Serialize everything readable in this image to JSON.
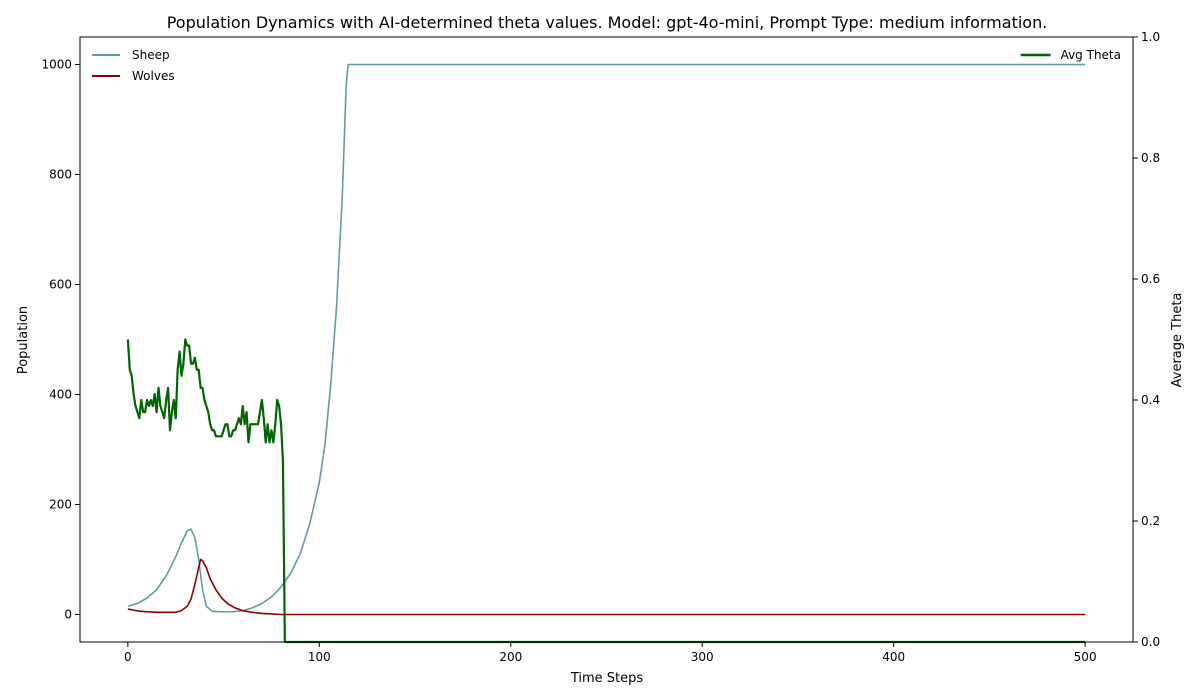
{
  "chart_data": {
    "type": "line",
    "title": "Population Dynamics with AI-determined theta values. Model: gpt-4o-mini, Prompt Type: medium information.",
    "xlabel": "Time Steps",
    "ylabel": "Population",
    "y2label": "Average Theta",
    "xlim": [
      -25,
      525
    ],
    "ylim": [
      -50,
      1050
    ],
    "y2lim": [
      0,
      1.0
    ],
    "xticks": [
      0,
      100,
      200,
      300,
      400,
      500
    ],
    "yticks": [
      0,
      200,
      400,
      600,
      800,
      1000
    ],
    "y2ticks": [
      0.0,
      0.2,
      0.4,
      0.6,
      0.8,
      1.0
    ],
    "legend_left_placement": "upper-left",
    "legend_right_placement": "upper-right",
    "series": [
      {
        "name": "Sheep",
        "axis": "left",
        "color": "#5f9ea0",
        "points": [
          [
            0,
            15
          ],
          [
            5,
            20
          ],
          [
            10,
            30
          ],
          [
            15,
            45
          ],
          [
            20,
            70
          ],
          [
            25,
            105
          ],
          [
            28,
            130
          ],
          [
            31,
            152
          ],
          [
            33,
            155
          ],
          [
            35,
            140
          ],
          [
            37,
            100
          ],
          [
            39,
            45
          ],
          [
            41,
            15
          ],
          [
            44,
            6
          ],
          [
            48,
            5
          ],
          [
            55,
            5
          ],
          [
            60,
            7
          ],
          [
            65,
            12
          ],
          [
            70,
            20
          ],
          [
            75,
            32
          ],
          [
            80,
            50
          ],
          [
            85,
            75
          ],
          [
            90,
            110
          ],
          [
            95,
            165
          ],
          [
            100,
            240
          ],
          [
            103,
            310
          ],
          [
            106,
            420
          ],
          [
            109,
            560
          ],
          [
            112,
            760
          ],
          [
            114,
            960
          ],
          [
            115,
            1000
          ],
          [
            500,
            1000
          ]
        ]
      },
      {
        "name": "Wolves",
        "axis": "left",
        "color": "#8b0000",
        "points": [
          [
            0,
            10
          ],
          [
            3,
            8
          ],
          [
            6,
            6
          ],
          [
            10,
            5
          ],
          [
            15,
            4
          ],
          [
            20,
            4
          ],
          [
            25,
            4
          ],
          [
            28,
            7
          ],
          [
            31,
            15
          ],
          [
            33,
            28
          ],
          [
            35,
            55
          ],
          [
            37,
            85
          ],
          [
            38,
            100
          ],
          [
            39,
            98
          ],
          [
            41,
            85
          ],
          [
            43,
            65
          ],
          [
            46,
            45
          ],
          [
            49,
            30
          ],
          [
            52,
            20
          ],
          [
            56,
            12
          ],
          [
            60,
            7
          ],
          [
            65,
            4
          ],
          [
            70,
            2
          ],
          [
            75,
            1
          ],
          [
            80,
            0
          ],
          [
            500,
            0
          ]
        ]
      },
      {
        "name": "Avg Theta",
        "axis": "right",
        "color": "#006400",
        "points": [
          [
            0,
            0.5
          ],
          [
            1,
            0.45
          ],
          [
            2,
            0.44
          ],
          [
            3,
            0.41
          ],
          [
            4,
            0.39
          ],
          [
            5,
            0.38
          ],
          [
            6,
            0.37
          ],
          [
            7,
            0.4
          ],
          [
            8,
            0.38
          ],
          [
            9,
            0.38
          ],
          [
            10,
            0.4
          ],
          [
            11,
            0.39
          ],
          [
            12,
            0.4
          ],
          [
            13,
            0.39
          ],
          [
            14,
            0.41
          ],
          [
            15,
            0.38
          ],
          [
            16,
            0.42
          ],
          [
            17,
            0.39
          ],
          [
            18,
            0.38
          ],
          [
            19,
            0.37
          ],
          [
            20,
            0.4
          ],
          [
            21,
            0.42
          ],
          [
            22,
            0.35
          ],
          [
            23,
            0.38
          ],
          [
            24,
            0.4
          ],
          [
            25,
            0.37
          ],
          [
            26,
            0.45
          ],
          [
            27,
            0.48
          ],
          [
            28,
            0.44
          ],
          [
            29,
            0.46
          ],
          [
            30,
            0.5
          ],
          [
            31,
            0.49
          ],
          [
            32,
            0.49
          ],
          [
            33,
            0.46
          ],
          [
            34,
            0.46
          ],
          [
            35,
            0.47
          ],
          [
            36,
            0.45
          ],
          [
            37,
            0.45
          ],
          [
            38,
            0.42
          ],
          [
            39,
            0.42
          ],
          [
            40,
            0.4
          ],
          [
            41,
            0.39
          ],
          [
            42,
            0.38
          ],
          [
            43,
            0.36
          ],
          [
            44,
            0.35
          ],
          [
            45,
            0.35
          ],
          [
            46,
            0.34
          ],
          [
            47,
            0.34
          ],
          [
            48,
            0.34
          ],
          [
            49,
            0.34
          ],
          [
            50,
            0.35
          ],
          [
            51,
            0.36
          ],
          [
            52,
            0.36
          ],
          [
            53,
            0.34
          ],
          [
            54,
            0.34
          ],
          [
            55,
            0.35
          ],
          [
            56,
            0.35
          ],
          [
            57,
            0.36
          ],
          [
            58,
            0.37
          ],
          [
            59,
            0.36
          ],
          [
            60,
            0.39
          ],
          [
            61,
            0.36
          ],
          [
            62,
            0.38
          ],
          [
            63,
            0.33
          ],
          [
            64,
            0.36
          ],
          [
            65,
            0.36
          ],
          [
            66,
            0.36
          ],
          [
            67,
            0.36
          ],
          [
            68,
            0.36
          ],
          [
            69,
            0.38
          ],
          [
            70,
            0.4
          ],
          [
            71,
            0.37
          ],
          [
            72,
            0.33
          ],
          [
            73,
            0.36
          ],
          [
            74,
            0.33
          ],
          [
            75,
            0.35
          ],
          [
            76,
            0.33
          ],
          [
            77,
            0.36
          ],
          [
            78,
            0.4
          ],
          [
            79,
            0.39
          ],
          [
            80,
            0.36
          ],
          [
            81,
            0.3
          ],
          [
            82,
            0.0
          ],
          [
            500,
            0.0
          ]
        ]
      }
    ]
  }
}
